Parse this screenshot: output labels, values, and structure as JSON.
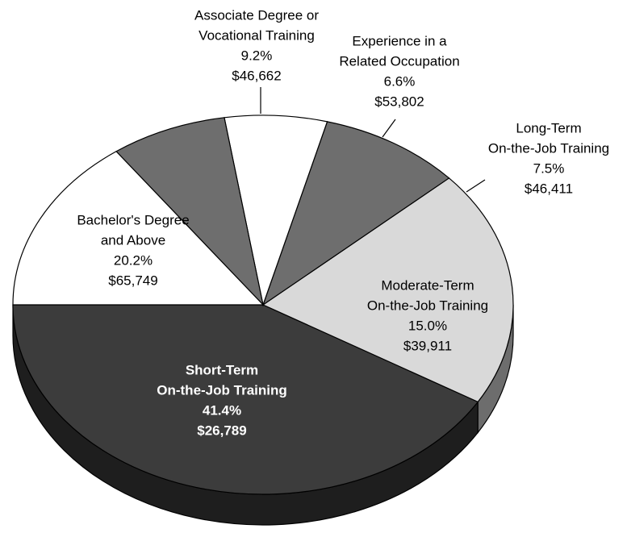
{
  "chart_data": {
    "type": "pie",
    "categories": [
      [
        "Short-Term",
        "On-the-Job Training"
      ],
      [
        "Bachelor's Degree",
        "and Above"
      ],
      [
        "Associate Degree or",
        "Vocational Training"
      ],
      [
        "Experience in a",
        "Related Occupation"
      ],
      [
        "Long-Term",
        "On-the-Job Training"
      ],
      [
        "Moderate-Term",
        "On-the-Job Training"
      ]
    ],
    "values": [
      41.4,
      20.2,
      9.2,
      6.6,
      7.5,
      15.0
    ],
    "value_labels": [
      "41.4%",
      "20.2%",
      "9.2%",
      "6.6%",
      "7.5%",
      "15.0%"
    ],
    "wage_labels": [
      "$26,789",
      "$65,749",
      "$46,662",
      "$53,802",
      "$46,411",
      "$39,911"
    ],
    "colors": [
      "#3c3c3c",
      "#d9d9d9",
      "#6e6e6e",
      "#ffffff",
      "#6e6e6e",
      "#ffffff"
    ]
  }
}
